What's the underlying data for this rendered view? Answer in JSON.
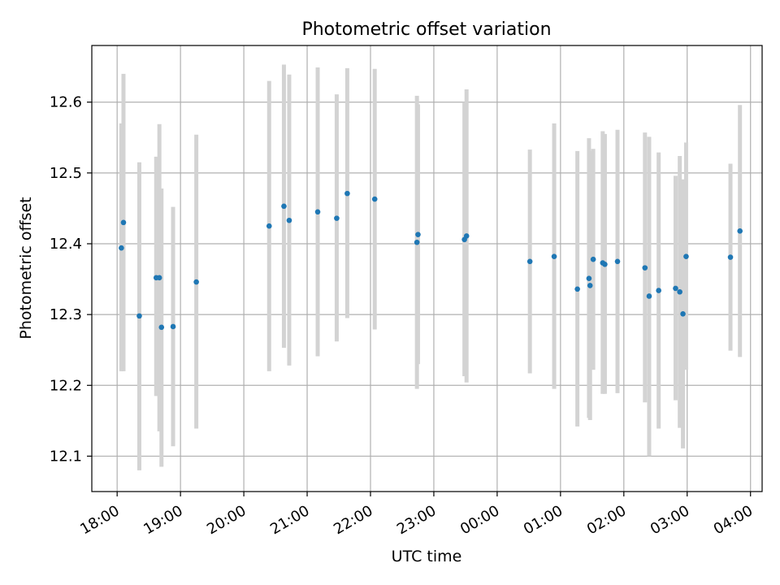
{
  "chart_data": {
    "type": "scatter",
    "title": "Photometric offset variation",
    "xlabel": "UTC time",
    "ylabel": "Photometric offset",
    "x_ticks": [
      "18:00",
      "19:00",
      "20:00",
      "21:00",
      "22:00",
      "23:00",
      "00:00",
      "01:00",
      "02:00",
      "03:00",
      "04:00"
    ],
    "y_ticks": [
      "12.1",
      "12.2",
      "12.3",
      "12.4",
      "12.5",
      "12.6"
    ],
    "ylim": [
      12.05,
      12.68
    ],
    "xlim": [
      "17:36",
      "04:11"
    ],
    "grid": true,
    "colors": {
      "points": "#1f77b4",
      "error_bars": "#d3d3d3",
      "grid": "#b0b0b0"
    },
    "series": [
      {
        "points": [
          {
            "x": "18:04",
            "y": 12.394,
            "yerr_low": 12.22,
            "yerr_high": 12.57
          },
          {
            "x": "18:06",
            "y": 12.43,
            "yerr_low": 12.22,
            "yerr_high": 12.64
          },
          {
            "x": "18:21",
            "y": 12.298,
            "yerr_low": 12.08,
            "yerr_high": 12.515
          },
          {
            "x": "18:37",
            "y": 12.352,
            "yerr_low": 12.185,
            "yerr_high": 12.523
          },
          {
            "x": "18:40",
            "y": 12.352,
            "yerr_low": 12.135,
            "yerr_high": 12.569
          },
          {
            "x": "18:42",
            "y": 12.282,
            "yerr_low": 12.085,
            "yerr_high": 12.478
          },
          {
            "x": "18:53",
            "y": 12.283,
            "yerr_low": 12.114,
            "yerr_high": 12.452
          },
          {
            "x": "19:15",
            "y": 12.346,
            "yerr_low": 12.139,
            "yerr_high": 12.554
          },
          {
            "x": "20:24",
            "y": 12.425,
            "yerr_low": 12.22,
            "yerr_high": 12.63
          },
          {
            "x": "20:38",
            "y": 12.453,
            "yerr_low": 12.253,
            "yerr_high": 12.653
          },
          {
            "x": "20:43",
            "y": 12.433,
            "yerr_low": 12.228,
            "yerr_high": 12.639
          },
          {
            "x": "21:10",
            "y": 12.445,
            "yerr_low": 12.241,
            "yerr_high": 12.649
          },
          {
            "x": "21:28",
            "y": 12.436,
            "yerr_low": 12.262,
            "yerr_high": 12.611
          },
          {
            "x": "21:38",
            "y": 12.471,
            "yerr_low": 12.295,
            "yerr_high": 12.648
          },
          {
            "x": "22:04",
            "y": 12.463,
            "yerr_low": 12.279,
            "yerr_high": 12.647
          },
          {
            "x": "22:44",
            "y": 12.402,
            "yerr_low": 12.195,
            "yerr_high": 12.609
          },
          {
            "x": "22:45",
            "y": 12.413,
            "yerr_low": 12.23,
            "yerr_high": 12.597
          },
          {
            "x": "23:29",
            "y": 12.406,
            "yerr_low": 12.213,
            "yerr_high": 12.6
          },
          {
            "x": "23:31",
            "y": 12.411,
            "yerr_low": 12.204,
            "yerr_high": 12.618
          },
          {
            "x": "00:31",
            "y": 12.375,
            "yerr_low": 12.217,
            "yerr_high": 12.533
          },
          {
            "x": "00:54",
            "y": 12.382,
            "yerr_low": 12.195,
            "yerr_high": 12.57
          },
          {
            "x": "01:16",
            "y": 12.336,
            "yerr_low": 12.142,
            "yerr_high": 12.531
          },
          {
            "x": "01:27",
            "y": 12.351,
            "yerr_low": 12.154,
            "yerr_high": 12.549
          },
          {
            "x": "01:28",
            "y": 12.341,
            "yerr_low": 12.151,
            "yerr_high": 12.531
          },
          {
            "x": "01:31",
            "y": 12.378,
            "yerr_low": 12.222,
            "yerr_high": 12.534
          },
          {
            "x": "01:40",
            "y": 12.373,
            "yerr_low": 12.188,
            "yerr_high": 12.559
          },
          {
            "x": "01:42",
            "y": 12.371,
            "yerr_low": 12.188,
            "yerr_high": 12.555
          },
          {
            "x": "01:54",
            "y": 12.375,
            "yerr_low": 12.189,
            "yerr_high": 12.561
          },
          {
            "x": "02:20",
            "y": 12.366,
            "yerr_low": 12.176,
            "yerr_high": 12.557
          },
          {
            "x": "02:24",
            "y": 12.326,
            "yerr_low": 12.1,
            "yerr_high": 12.551
          },
          {
            "x": "02:33",
            "y": 12.334,
            "yerr_low": 12.139,
            "yerr_high": 12.529
          },
          {
            "x": "02:49",
            "y": 12.337,
            "yerr_low": 12.179,
            "yerr_high": 12.496
          },
          {
            "x": "02:53",
            "y": 12.332,
            "yerr_low": 12.14,
            "yerr_high": 12.524
          },
          {
            "x": "02:56",
            "y": 12.301,
            "yerr_low": 12.111,
            "yerr_high": 12.491
          },
          {
            "x": "02:59",
            "y": 12.382,
            "yerr_low": 12.222,
            "yerr_high": 12.543
          },
          {
            "x": "03:41",
            "y": 12.381,
            "yerr_low": 12.249,
            "yerr_high": 12.513
          },
          {
            "x": "03:50",
            "y": 12.418,
            "yerr_low": 12.24,
            "yerr_high": 12.596
          }
        ]
      }
    ]
  }
}
